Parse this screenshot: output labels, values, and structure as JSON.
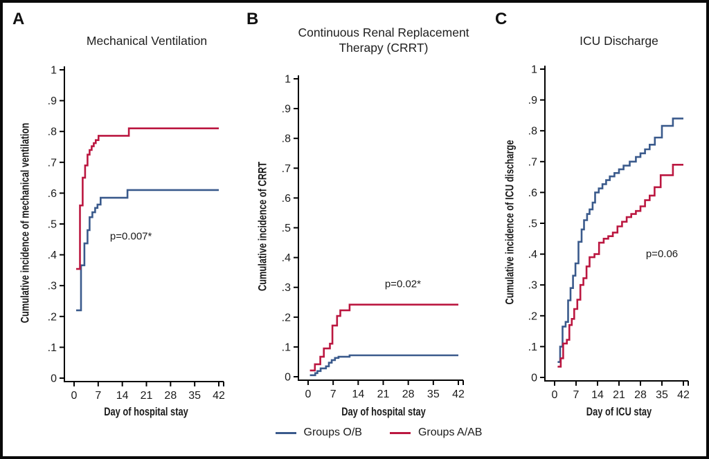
{
  "figure": {
    "background": "#ffffff",
    "border_color": "#0a0a0a"
  },
  "legend": {
    "items": [
      {
        "label": "Groups O/B",
        "color": "#3a5a8c"
      },
      {
        "label": "Groups A/AB",
        "color": "#bb1740"
      }
    ]
  },
  "chart_data": [
    {
      "type": "line",
      "panel": "A",
      "title": "Mechanical Ventilation",
      "xlabel": "Day of hospital stay",
      "ylabel": "Cumulative incidence of mechanical ventilation",
      "xlim": [
        0,
        42
      ],
      "ylim": [
        0,
        1
      ],
      "xticks": [
        0,
        7,
        14,
        21,
        28,
        35,
        42
      ],
      "yticks": [
        "0",
        ".1",
        ".2",
        ".3",
        ".4",
        ".5",
        ".6",
        ".7",
        ".8",
        ".9",
        "1"
      ],
      "grid": false,
      "legend_position": "figure-bottom",
      "annotation": {
        "text": "p=0.007*",
        "x": 16.5,
        "y": 0.45
      },
      "series": [
        {
          "name": "Groups O/B",
          "color": "#3a5a8c",
          "step": true,
          "points": [
            [
              0.6,
              0.22
            ],
            [
              2,
              0.366
            ],
            [
              3,
              0.437
            ],
            [
              3.9,
              0.48
            ],
            [
              4.5,
              0.522
            ],
            [
              5.3,
              0.538
            ],
            [
              6.1,
              0.552
            ],
            [
              6.8,
              0.563
            ],
            [
              7.7,
              0.585
            ],
            [
              15.5,
              0.61
            ]
          ]
        },
        {
          "name": "Groups A/AB",
          "color": "#bb1740",
          "step": true,
          "points": [
            [
              0.6,
              0.354
            ],
            [
              1.7,
              0.56
            ],
            [
              2.5,
              0.65
            ],
            [
              3.2,
              0.69
            ],
            [
              3.9,
              0.725
            ],
            [
              4.5,
              0.74
            ],
            [
              5.1,
              0.752
            ],
            [
              5.7,
              0.762
            ],
            [
              6.3,
              0.772
            ],
            [
              7.1,
              0.786
            ],
            [
              15.9,
              0.81
            ]
          ]
        }
      ]
    },
    {
      "type": "line",
      "panel": "B",
      "title": "Continuous Renal Replacement\nTherapy (CRRT)",
      "xlabel": "Day of hospital stay",
      "ylabel": "Cumulative incidence of CRRT",
      "xlim": [
        0,
        42
      ],
      "ylim": [
        0,
        1
      ],
      "xticks": [
        0,
        7,
        14,
        21,
        28,
        35,
        42
      ],
      "yticks": [
        "0",
        ".1",
        ".2",
        ".3",
        ".4",
        ".5",
        ".6",
        ".7",
        ".8",
        ".9",
        "1"
      ],
      "grid": false,
      "legend_position": "figure-bottom",
      "annotation": {
        "text": "p=0.02*",
        "x": 26.5,
        "y": 0.3
      },
      "series": [
        {
          "name": "Groups O/B",
          "color": "#3a5a8c",
          "step": true,
          "points": [
            [
              0.5,
              0.005
            ],
            [
              2,
              0.012
            ],
            [
              2.6,
              0.019
            ],
            [
              3.5,
              0.028
            ],
            [
              5,
              0.035
            ],
            [
              5.8,
              0.047
            ],
            [
              6.6,
              0.056
            ],
            [
              7.5,
              0.063
            ],
            [
              8.5,
              0.067
            ],
            [
              11.6,
              0.072
            ]
          ]
        },
        {
          "name": "Groups A/AB",
          "color": "#bb1740",
          "step": true,
          "points": [
            [
              0.5,
              0.021
            ],
            [
              1.9,
              0.042
            ],
            [
              3.4,
              0.067
            ],
            [
              4.4,
              0.095
            ],
            [
              6.1,
              0.111
            ],
            [
              6.8,
              0.172
            ],
            [
              8.1,
              0.204
            ],
            [
              9,
              0.223
            ],
            [
              11.6,
              0.242
            ]
          ]
        }
      ]
    },
    {
      "type": "line",
      "panel": "C",
      "title": "ICU Discharge",
      "xlabel": "Day of ICU stay",
      "ylabel": "Cumulative incidence of ICU discharge",
      "xlim": [
        0,
        42
      ],
      "ylim": [
        0,
        1
      ],
      "xticks": [
        0,
        7,
        14,
        21,
        28,
        35,
        42
      ],
      "yticks": [
        "0",
        ".1",
        ".2",
        ".3",
        ".4",
        ".5",
        ".6",
        ".7",
        ".8",
        ".9",
        "1"
      ],
      "grid": false,
      "legend_position": "figure-bottom",
      "annotation": {
        "text": "p=0.06",
        "x": 35,
        "y": 0.39
      },
      "series": [
        {
          "name": "Groups O/B",
          "color": "#3a5a8c",
          "step": true,
          "points": [
            [
              1,
              0.05
            ],
            [
              1.8,
              0.1
            ],
            [
              2.6,
              0.165
            ],
            [
              3.6,
              0.18
            ],
            [
              4.4,
              0.25
            ],
            [
              5.2,
              0.29
            ],
            [
              6,
              0.33
            ],
            [
              6.8,
              0.37
            ],
            [
              7.8,
              0.44
            ],
            [
              8.8,
              0.48
            ],
            [
              9.6,
              0.51
            ],
            [
              10.6,
              0.53
            ],
            [
              11.4,
              0.545
            ],
            [
              12.4,
              0.567
            ],
            [
              13.2,
              0.6
            ],
            [
              14.4,
              0.613
            ],
            [
              15.6,
              0.627
            ],
            [
              16.8,
              0.64
            ],
            [
              18,
              0.652
            ],
            [
              19.5,
              0.663
            ],
            [
              21,
              0.675
            ],
            [
              22.5,
              0.687
            ],
            [
              24.5,
              0.7
            ],
            [
              26.5,
              0.715
            ],
            [
              28,
              0.727
            ],
            [
              29.5,
              0.74
            ],
            [
              31,
              0.755
            ],
            [
              32.7,
              0.778
            ],
            [
              35,
              0.816
            ],
            [
              38.6,
              0.84
            ]
          ]
        },
        {
          "name": "Groups A/AB",
          "color": "#bb1740",
          "step": true,
          "points": [
            [
              1,
              0.035
            ],
            [
              2,
              0.062
            ],
            [
              2.8,
              0.11
            ],
            [
              4,
              0.122
            ],
            [
              4.8,
              0.17
            ],
            [
              5.6,
              0.19
            ],
            [
              6.4,
              0.222
            ],
            [
              7.4,
              0.252
            ],
            [
              8.4,
              0.3
            ],
            [
              9.4,
              0.322
            ],
            [
              10.4,
              0.36
            ],
            [
              11.4,
              0.39
            ],
            [
              13,
              0.4
            ],
            [
              14.5,
              0.437
            ],
            [
              16,
              0.45
            ],
            [
              17.5,
              0.458
            ],
            [
              19,
              0.47
            ],
            [
              20.5,
              0.49
            ],
            [
              22,
              0.505
            ],
            [
              23.5,
              0.52
            ],
            [
              25,
              0.53
            ],
            [
              26.5,
              0.54
            ],
            [
              28,
              0.555
            ],
            [
              29.5,
              0.575
            ],
            [
              31,
              0.59
            ],
            [
              32.6,
              0.617
            ],
            [
              34.6,
              0.656
            ],
            [
              38.6,
              0.69
            ]
          ]
        }
      ]
    }
  ]
}
